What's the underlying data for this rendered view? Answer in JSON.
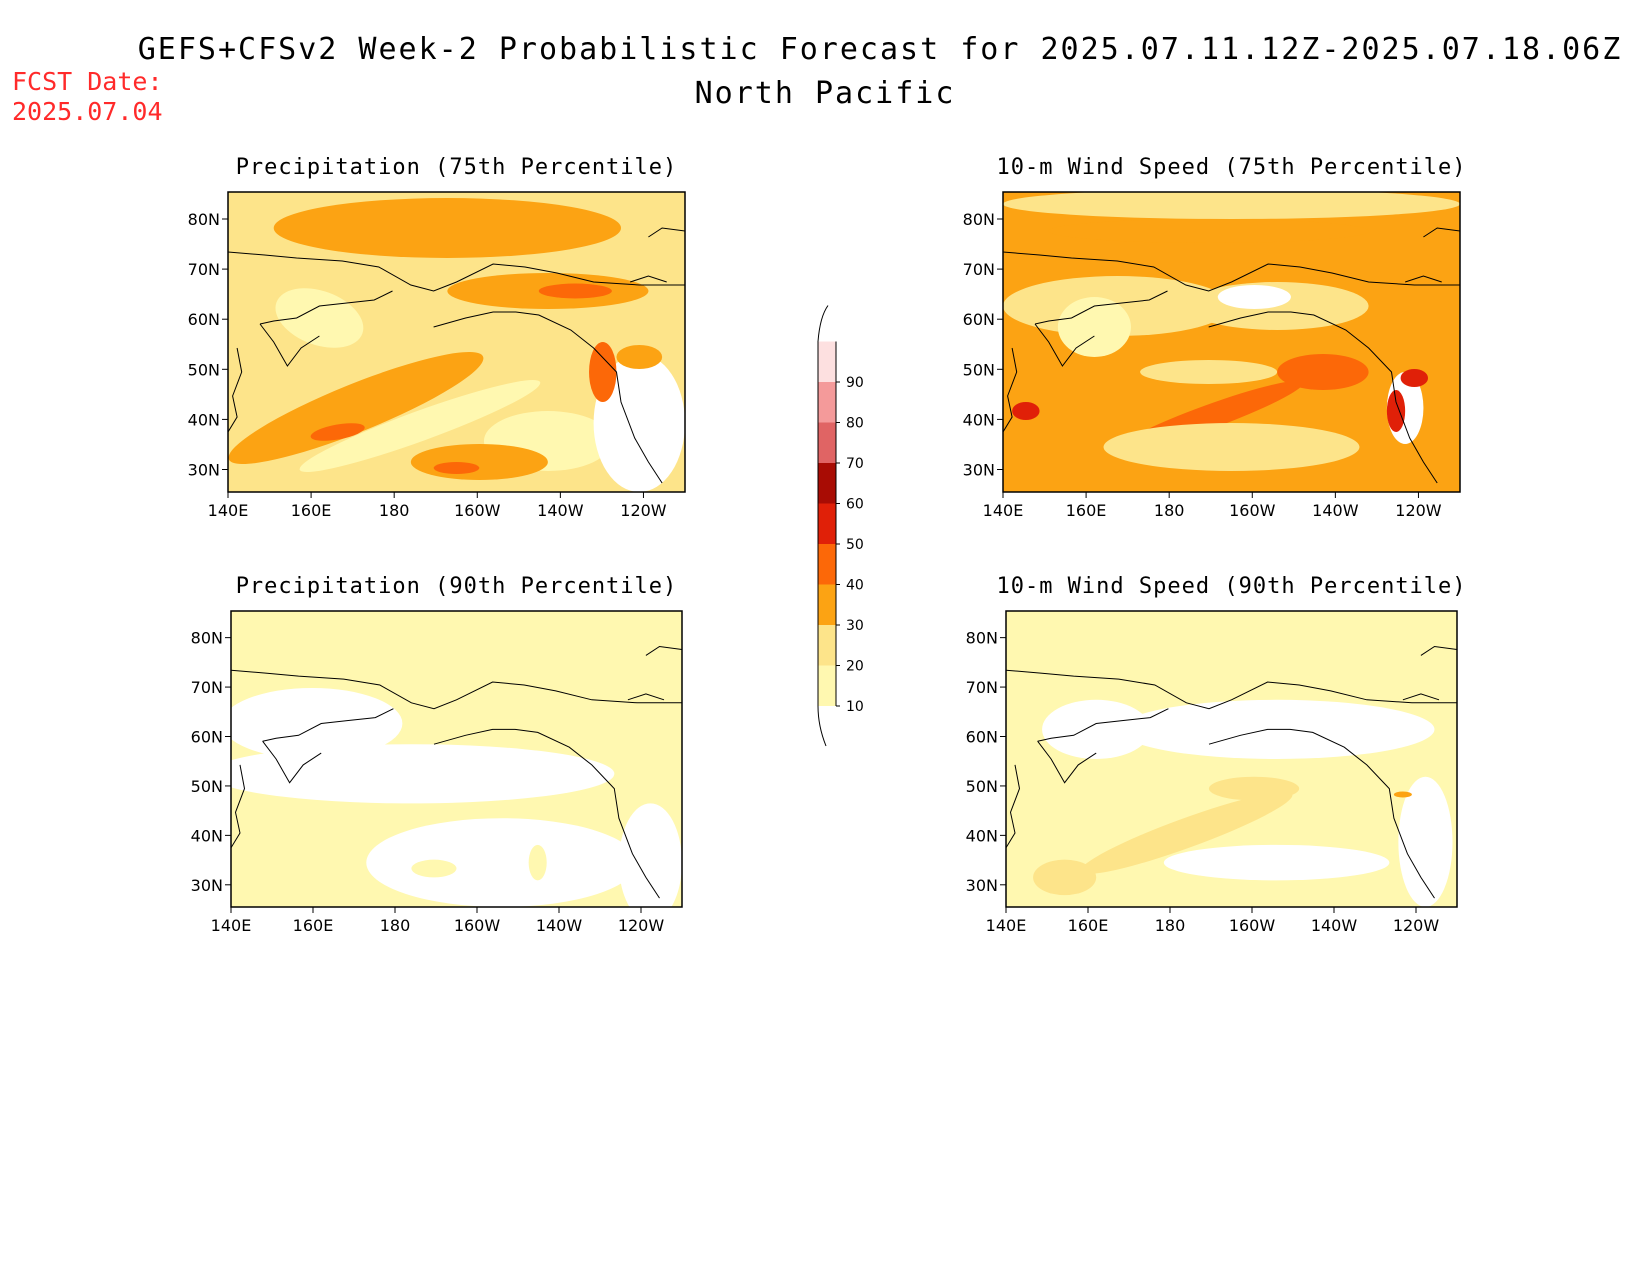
{
  "header": {
    "title": "GEFS+CFSv2 Week-2 Probabilistic Forecast for 2025.07.11.12Z-2025.07.18.06Z",
    "region": "North Pacific",
    "fcst_label": "FCST Date:",
    "fcst_date": "2025.07.04"
  },
  "panels": [
    {
      "id": "precip75",
      "title": "Precipitation (75th Percentile)"
    },
    {
      "id": "wind75",
      "title": "10-m Wind Speed (75th Percentile)"
    },
    {
      "id": "precip90",
      "title": "Precipitation (90th Percentile)"
    },
    {
      "id": "wind90",
      "title": "10-m Wind Speed (90th Percentile)"
    }
  ],
  "axes": {
    "lon_ticks": [
      "140E",
      "160E",
      "180",
      "160W",
      "140W",
      "120W"
    ],
    "lat_ticks": [
      "80N",
      "70N",
      "60N",
      "50N",
      "40N",
      "30N"
    ]
  },
  "colorbar": {
    "levels": [
      "10",
      "20",
      "30",
      "40",
      "50",
      "60",
      "70",
      "80",
      "90"
    ],
    "colors": [
      "#fff8b0",
      "#fde48a",
      "#fca313",
      "#fc6808",
      "#e02008",
      "#a80c04",
      "#e06464",
      "#f49a9a",
      "#fde0e0"
    ]
  }
}
